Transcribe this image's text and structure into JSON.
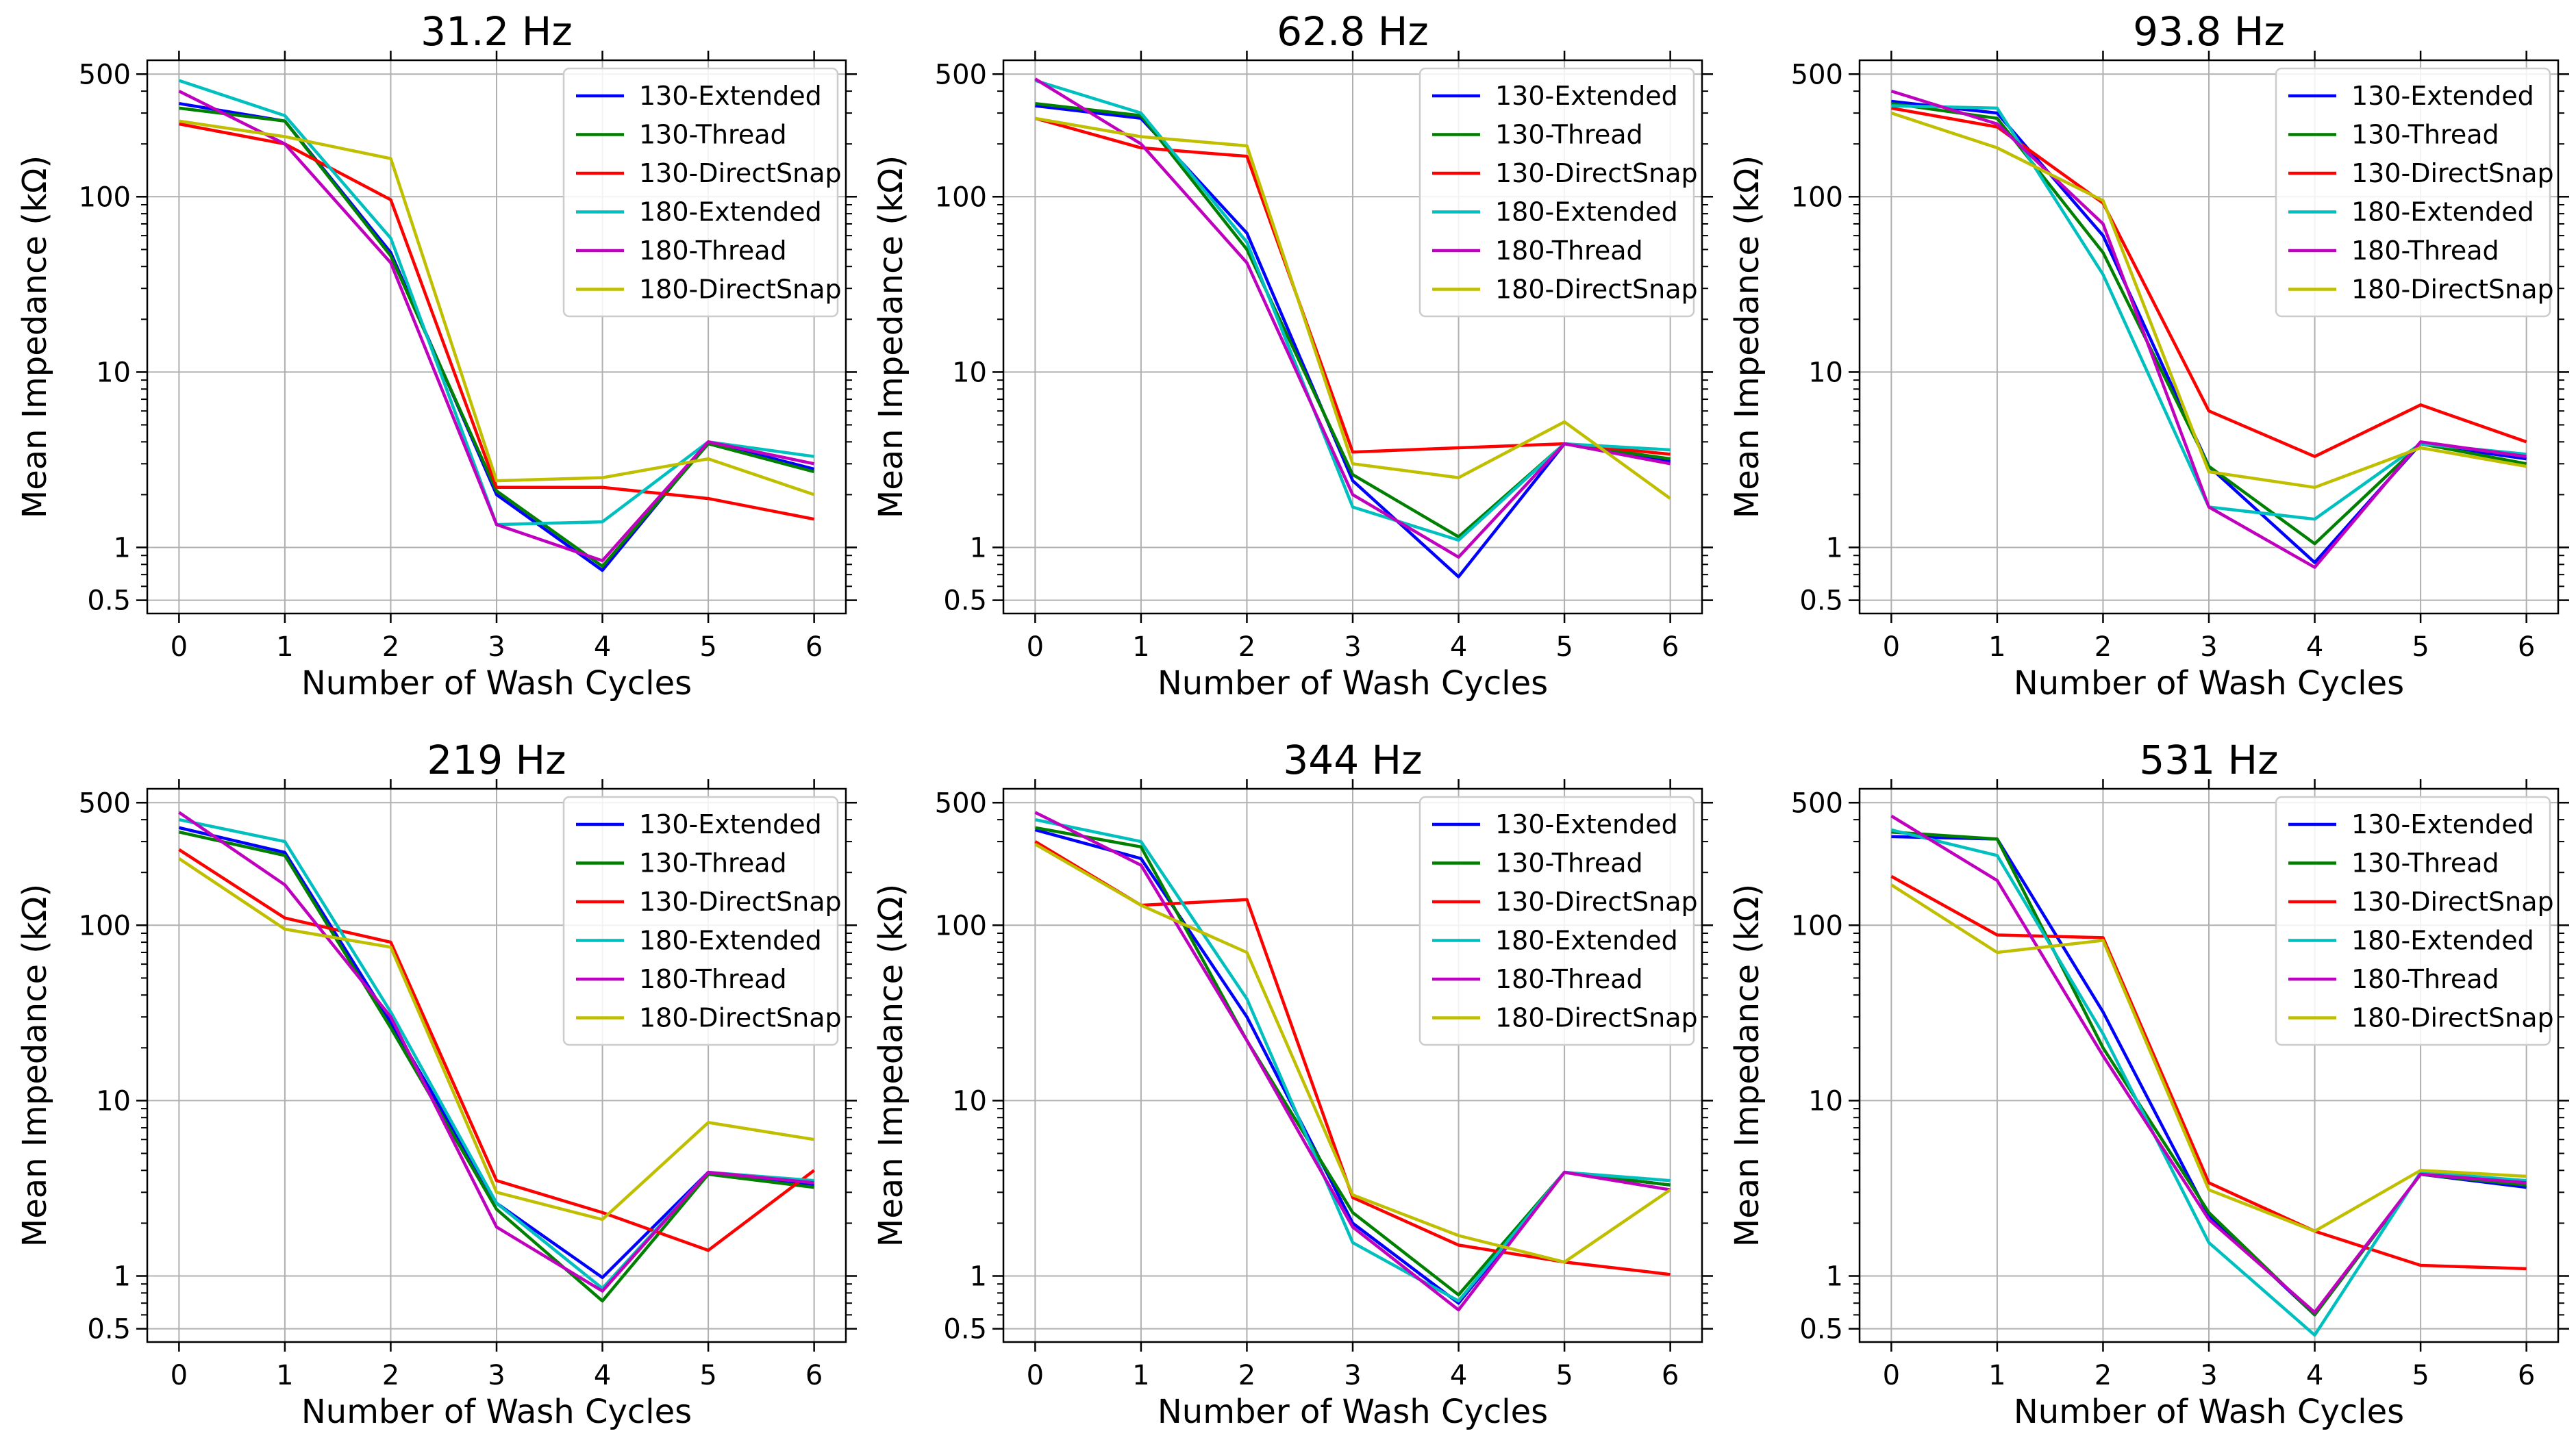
{
  "figure": {
    "background": "#ffffff"
  },
  "series_style": [
    {
      "name": "130-Extended",
      "color": "#0000ff"
    },
    {
      "name": "130-Thread",
      "color": "#008000"
    },
    {
      "name": "130-DirectSnap",
      "color": "#ff0000"
    },
    {
      "name": "180-Extended",
      "color": "#00bfbf"
    },
    {
      "name": "180-Thread",
      "color": "#bf00bf"
    },
    {
      "name": "180-DirectSnap",
      "color": "#bfbf00"
    }
  ],
  "chart_data": [
    {
      "type": "line",
      "title": "31.2 Hz",
      "xlabel": "Number of Wash Cycles",
      "ylabel": "Mean Impedance (kΩ)",
      "yscale": "log",
      "x": [
        0,
        1,
        2,
        3,
        4,
        5,
        6
      ],
      "xticks": [
        "0",
        "1",
        "2",
        "3",
        "4",
        "5",
        "6"
      ],
      "yticks": [
        {
          "value": 0.5,
          "label": "0.5"
        },
        {
          "value": 1,
          "label": "1"
        },
        {
          "value": 10,
          "label": "10"
        },
        {
          "value": 100,
          "label": "100"
        },
        {
          "value": 500,
          "label": "500"
        }
      ],
      "xlim": [
        -0.3,
        6.3
      ],
      "ylim": [
        0.42,
        600
      ],
      "grid": true,
      "legend": "top-right",
      "series": [
        {
          "name": "130-Extended",
          "values": [
            340,
            270,
            48,
            2.0,
            0.74,
            4.0,
            2.8
          ]
        },
        {
          "name": "130-Thread",
          "values": [
            320,
            270,
            46,
            2.1,
            0.78,
            3.9,
            2.7
          ]
        },
        {
          "name": "130-DirectSnap",
          "values": [
            260,
            200,
            96,
            2.2,
            2.2,
            1.9,
            1.45
          ]
        },
        {
          "name": "180-Extended",
          "values": [
            460,
            290,
            58,
            1.35,
            1.4,
            4.0,
            3.3
          ]
        },
        {
          "name": "180-Thread",
          "values": [
            400,
            200,
            42,
            1.35,
            0.84,
            4.0,
            3.0
          ]
        },
        {
          "name": "180-DirectSnap",
          "values": [
            270,
            220,
            165,
            2.4,
            2.5,
            3.2,
            2.0
          ]
        }
      ]
    },
    {
      "type": "line",
      "title": "62.8 Hz",
      "xlabel": "Number of Wash Cycles",
      "ylabel": "Mean Impedance (kΩ)",
      "yscale": "log",
      "x": [
        0,
        1,
        2,
        3,
        4,
        5,
        6
      ],
      "xticks": [
        "0",
        "1",
        "2",
        "3",
        "4",
        "5",
        "6"
      ],
      "yticks": [
        {
          "value": 0.5,
          "label": "0.5"
        },
        {
          "value": 1,
          "label": "1"
        },
        {
          "value": 10,
          "label": "10"
        },
        {
          "value": 100,
          "label": "100"
        },
        {
          "value": 500,
          "label": "500"
        }
      ],
      "xlim": [
        -0.3,
        6.3
      ],
      "ylim": [
        0.42,
        600
      ],
      "grid": true,
      "legend": "top-right",
      "series": [
        {
          "name": "130-Extended",
          "values": [
            330,
            280,
            62,
            2.4,
            0.68,
            3.9,
            3.1
          ]
        },
        {
          "name": "130-Thread",
          "values": [
            340,
            290,
            50,
            2.6,
            1.15,
            3.9,
            3.2
          ]
        },
        {
          "name": "130-DirectSnap",
          "values": [
            280,
            190,
            170,
            3.5,
            3.7,
            3.9,
            3.4
          ]
        },
        {
          "name": "180-Extended",
          "values": [
            460,
            300,
            55,
            1.7,
            1.1,
            3.9,
            3.6
          ]
        },
        {
          "name": "180-Thread",
          "values": [
            470,
            200,
            42,
            2.0,
            0.88,
            3.9,
            3.0
          ]
        },
        {
          "name": "180-DirectSnap",
          "values": [
            280,
            220,
            195,
            3.0,
            2.5,
            5.2,
            1.9
          ]
        }
      ]
    },
    {
      "type": "line",
      "title": "93.8 Hz",
      "xlabel": "Number of Wash Cycles",
      "ylabel": "Mean Impedance (kΩ)",
      "yscale": "log",
      "x": [
        0,
        1,
        2,
        3,
        4,
        5,
        6
      ],
      "xticks": [
        "0",
        "1",
        "2",
        "3",
        "4",
        "5",
        "6"
      ],
      "yticks": [
        {
          "value": 0.5,
          "label": "0.5"
        },
        {
          "value": 1,
          "label": "1"
        },
        {
          "value": 10,
          "label": "10"
        },
        {
          "value": 100,
          "label": "100"
        },
        {
          "value": 500,
          "label": "500"
        }
      ],
      "xlim": [
        -0.3,
        6.3
      ],
      "ylim": [
        0.42,
        600
      ],
      "grid": true,
      "legend": "top-right",
      "series": [
        {
          "name": "130-Extended",
          "values": [
            350,
            300,
            60,
            2.9,
            0.82,
            3.9,
            3.2
          ]
        },
        {
          "name": "130-Thread",
          "values": [
            340,
            280,
            48,
            2.9,
            1.05,
            3.9,
            3.0
          ]
        },
        {
          "name": "130-DirectSnap",
          "values": [
            320,
            250,
            92,
            6.0,
            3.3,
            6.5,
            4.0
          ]
        },
        {
          "name": "180-Extended",
          "values": [
            330,
            320,
            36,
            1.7,
            1.45,
            3.9,
            3.4
          ]
        },
        {
          "name": "180-Thread",
          "values": [
            400,
            260,
            70,
            1.7,
            0.77,
            4.0,
            3.3
          ]
        },
        {
          "name": "180-DirectSnap",
          "values": [
            300,
            190,
            95,
            2.7,
            2.2,
            3.7,
            2.9
          ]
        }
      ]
    },
    {
      "type": "line",
      "title": "219 Hz",
      "xlabel": "Number of Wash Cycles",
      "ylabel": "Mean Impedance (kΩ)",
      "yscale": "log",
      "x": [
        0,
        1,
        2,
        3,
        4,
        5,
        6
      ],
      "xticks": [
        "0",
        "1",
        "2",
        "3",
        "4",
        "5",
        "6"
      ],
      "yticks": [
        {
          "value": 0.5,
          "label": "0.5"
        },
        {
          "value": 1,
          "label": "1"
        },
        {
          "value": 10,
          "label": "10"
        },
        {
          "value": 100,
          "label": "100"
        },
        {
          "value": 500,
          "label": "500"
        }
      ],
      "xlim": [
        -0.3,
        6.3
      ],
      "ylim": [
        0.42,
        600
      ],
      "grid": true,
      "legend": "top-right",
      "series": [
        {
          "name": "130-Extended",
          "values": [
            360,
            260,
            28,
            2.6,
            0.98,
            3.9,
            3.3
          ]
        },
        {
          "name": "130-Thread",
          "values": [
            340,
            250,
            26,
            2.4,
            0.72,
            3.8,
            3.2
          ]
        },
        {
          "name": "130-DirectSnap",
          "values": [
            270,
            110,
            80,
            3.5,
            2.3,
            1.4,
            4.0
          ]
        },
        {
          "name": "180-Extended",
          "values": [
            400,
            300,
            32,
            2.6,
            0.85,
            3.9,
            3.5
          ]
        },
        {
          "name": "180-Thread",
          "values": [
            440,
            170,
            30,
            1.9,
            0.82,
            3.9,
            3.4
          ]
        },
        {
          "name": "180-DirectSnap",
          "values": [
            240,
            95,
            75,
            3.0,
            2.1,
            7.5,
            6.0
          ]
        }
      ]
    },
    {
      "type": "line",
      "title": "344 Hz",
      "xlabel": "Number of Wash Cycles",
      "ylabel": "Mean Impedance (kΩ)",
      "yscale": "log",
      "x": [
        0,
        1,
        2,
        3,
        4,
        5,
        6
      ],
      "xticks": [
        "0",
        "1",
        "2",
        "3",
        "4",
        "5",
        "6"
      ],
      "yticks": [
        {
          "value": 0.5,
          "label": "0.5"
        },
        {
          "value": 1,
          "label": "1"
        },
        {
          "value": 10,
          "label": "10"
        },
        {
          "value": 100,
          "label": "100"
        },
        {
          "value": 500,
          "label": "500"
        }
      ],
      "xlim": [
        -0.3,
        6.3
      ],
      "ylim": [
        0.42,
        600
      ],
      "grid": true,
      "legend": "top-right",
      "series": [
        {
          "name": "130-Extended",
          "values": [
            350,
            240,
            30,
            2.0,
            0.7,
            3.9,
            3.3
          ]
        },
        {
          "name": "130-Thread",
          "values": [
            360,
            280,
            22,
            2.3,
            0.78,
            3.9,
            3.3
          ]
        },
        {
          "name": "130-DirectSnap",
          "values": [
            300,
            130,
            140,
            2.8,
            1.5,
            1.2,
            1.02
          ]
        },
        {
          "name": "180-Extended",
          "values": [
            400,
            300,
            38,
            1.55,
            0.72,
            3.9,
            3.5
          ]
        },
        {
          "name": "180-Thread",
          "values": [
            440,
            220,
            22,
            1.9,
            0.64,
            3.9,
            3.1
          ]
        },
        {
          "name": "180-DirectSnap",
          "values": [
            290,
            130,
            70,
            2.9,
            1.7,
            1.2,
            3.1
          ]
        }
      ]
    },
    {
      "type": "line",
      "title": "531 Hz",
      "xlabel": "Number of Wash Cycles",
      "ylabel": "Mean Impedance (kΩ)",
      "yscale": "log",
      "x": [
        0,
        1,
        2,
        3,
        4,
        5,
        6
      ],
      "xticks": [
        "0",
        "1",
        "2",
        "3",
        "4",
        "5",
        "6"
      ],
      "yticks": [
        {
          "value": 0.5,
          "label": "0.5"
        },
        {
          "value": 1,
          "label": "1"
        },
        {
          "value": 10,
          "label": "10"
        },
        {
          "value": 100,
          "label": "100"
        },
        {
          "value": 500,
          "label": "500"
        }
      ],
      "xlim": [
        -0.3,
        6.3
      ],
      "ylim": [
        0.42,
        600
      ],
      "grid": true,
      "legend": "top-right",
      "series": [
        {
          "name": "130-Extended",
          "values": [
            320,
            310,
            32,
            2.2,
            0.6,
            3.8,
            3.2
          ]
        },
        {
          "name": "130-Thread",
          "values": [
            340,
            310,
            20,
            2.3,
            0.6,
            3.8,
            3.3
          ]
        },
        {
          "name": "130-DirectSnap",
          "values": [
            190,
            88,
            85,
            3.4,
            1.8,
            1.15,
            1.1
          ]
        },
        {
          "name": "180-Extended",
          "values": [
            350,
            250,
            24,
            1.55,
            0.46,
            3.9,
            3.5
          ]
        },
        {
          "name": "180-Thread",
          "values": [
            420,
            180,
            18,
            2.1,
            0.62,
            3.8,
            3.4
          ]
        },
        {
          "name": "180-DirectSnap",
          "values": [
            170,
            70,
            82,
            3.1,
            1.8,
            4.0,
            3.7
          ]
        }
      ]
    }
  ]
}
